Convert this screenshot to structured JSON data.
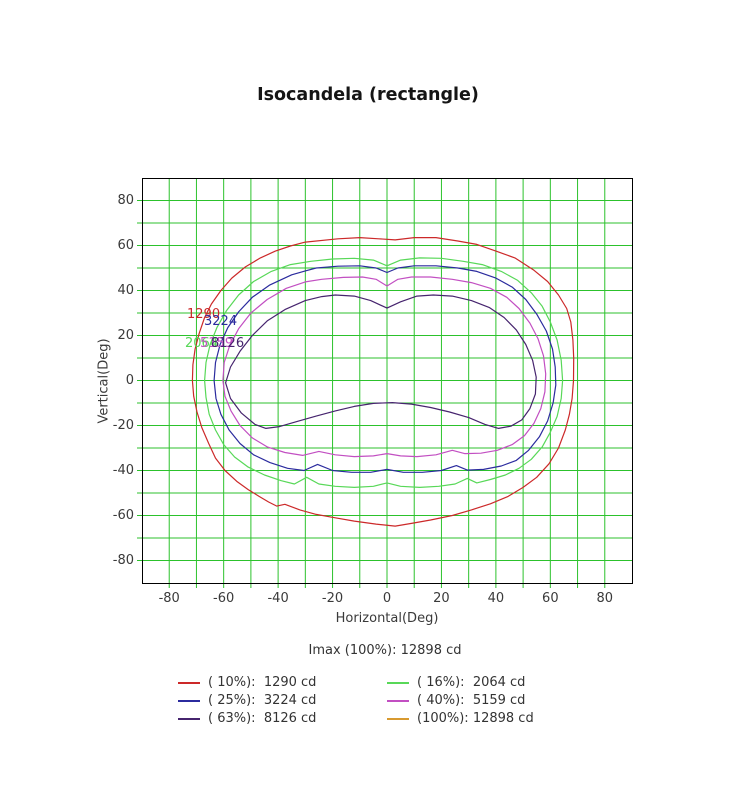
{
  "title": "Isocandela (rectangle)",
  "imax_text": "Imax (100%): 12898 cd",
  "chart_data": {
    "type": "line",
    "subtype": "isocandela-contour-plot",
    "title": "Isocandela (rectangle)",
    "xlabel": "Horizontal(Deg)",
    "ylabel": "Vertical(Deg)",
    "xlim": [
      -90,
      90
    ],
    "ylim": [
      -90,
      90
    ],
    "grid_step": 10,
    "grid_on": true,
    "grid_color": "#2cc22c",
    "axis_color": "#000000",
    "tick_color": "#2cc22c",
    "x_tick_values": [
      -80,
      -60,
      -40,
      -20,
      0,
      20,
      40,
      60,
      80
    ],
    "y_tick_values": [
      80,
      60,
      40,
      20,
      0,
      -20,
      -40,
      -60,
      -80
    ],
    "imax_candela": 12898,
    "legend_position": "bottom",
    "series": [
      {
        "name": "( 10%)",
        "percent": 10,
        "candela": 1290,
        "legend_text": "( 10%):  1290 cd",
        "color": "#cc2929",
        "points": [
          [
            -30,
            61.5
          ],
          [
            -18,
            63
          ],
          [
            -10,
            63.5
          ],
          [
            -3,
            63
          ],
          [
            3,
            62.5
          ],
          [
            10,
            63.5
          ],
          [
            18,
            63.5
          ],
          [
            26,
            62
          ],
          [
            33,
            60.5
          ],
          [
            40,
            57.5
          ],
          [
            47,
            54.5
          ],
          [
            54,
            49
          ],
          [
            59,
            44
          ],
          [
            63,
            38
          ],
          [
            66,
            32
          ],
          [
            67.5,
            26
          ],
          [
            68.3,
            18
          ],
          [
            68.6,
            10
          ],
          [
            68.5,
            0
          ],
          [
            68,
            -8
          ],
          [
            67,
            -15
          ],
          [
            65.5,
            -22
          ],
          [
            63,
            -30
          ],
          [
            59.5,
            -37
          ],
          [
            55,
            -43
          ],
          [
            50,
            -47.5
          ],
          [
            44.5,
            -51.5
          ],
          [
            38,
            -54.8
          ],
          [
            31,
            -57.5
          ],
          [
            24,
            -60
          ],
          [
            16,
            -62
          ],
          [
            9,
            -63.5
          ],
          [
            3,
            -64.7
          ],
          [
            -4,
            -63.8
          ],
          [
            -12,
            -62.5
          ],
          [
            -19,
            -61
          ],
          [
            -26,
            -59.5
          ],
          [
            -32,
            -57.5
          ],
          [
            -37.5,
            -55
          ],
          [
            -40.5,
            -55.8
          ],
          [
            -43.5,
            -54
          ],
          [
            -47,
            -51.5
          ],
          [
            -51,
            -48.5
          ],
          [
            -55,
            -45
          ],
          [
            -59.5,
            -40
          ],
          [
            -63,
            -34.5
          ],
          [
            -65.5,
            -28
          ],
          [
            -68,
            -21
          ],
          [
            -69.8,
            -14
          ],
          [
            -71,
            -7
          ],
          [
            -71.5,
            0
          ],
          [
            -71.3,
            7
          ],
          [
            -70.5,
            14
          ],
          [
            -69,
            21
          ],
          [
            -67,
            28
          ],
          [
            -64.5,
            34
          ],
          [
            -61,
            40
          ],
          [
            -57,
            45.5
          ],
          [
            -52,
            50.5
          ],
          [
            -46.5,
            54.5
          ],
          [
            -41,
            57.5
          ],
          [
            -35.5,
            59.8
          ]
        ]
      },
      {
        "name": "( 16%)",
        "percent": 16,
        "candela": 2064,
        "legend_text": "( 16%):  2064 cd",
        "color": "#58d858",
        "points": [
          [
            -28,
            53
          ],
          [
            -20,
            54
          ],
          [
            -12,
            54.3
          ],
          [
            -5,
            53.5
          ],
          [
            0,
            51
          ],
          [
            5,
            53.5
          ],
          [
            12,
            54.5
          ],
          [
            20,
            54.3
          ],
          [
            28,
            53
          ],
          [
            35,
            51.5
          ],
          [
            42,
            48.5
          ],
          [
            48,
            44.5
          ],
          [
            53,
            39
          ],
          [
            57,
            33
          ],
          [
            60,
            26
          ],
          [
            62.5,
            18
          ],
          [
            64,
            9
          ],
          [
            64.5,
            0
          ],
          [
            64,
            -8
          ],
          [
            62.5,
            -16
          ],
          [
            60,
            -23
          ],
          [
            57,
            -29.5
          ],
          [
            53,
            -35
          ],
          [
            48.5,
            -39
          ],
          [
            43.5,
            -42
          ],
          [
            38,
            -44
          ],
          [
            33,
            -45.5
          ],
          [
            29.5,
            -43.5
          ],
          [
            25,
            -46
          ],
          [
            19,
            -47
          ],
          [
            12,
            -47.5
          ],
          [
            5,
            -47
          ],
          [
            0,
            -45.5
          ],
          [
            -5,
            -47
          ],
          [
            -12,
            -47.5
          ],
          [
            -19,
            -47
          ],
          [
            -25,
            -46
          ],
          [
            -29.5,
            -43
          ],
          [
            -34,
            -46
          ],
          [
            -39,
            -44.5
          ],
          [
            -45,
            -42
          ],
          [
            -51,
            -38.5
          ],
          [
            -56,
            -34
          ],
          [
            -60,
            -28.5
          ],
          [
            -63,
            -22
          ],
          [
            -65.3,
            -15
          ],
          [
            -66.5,
            -7.5
          ],
          [
            -67,
            0
          ],
          [
            -66.5,
            8
          ],
          [
            -65,
            16
          ],
          [
            -62.5,
            23.5
          ],
          [
            -59,
            31
          ],
          [
            -54.5,
            38
          ],
          [
            -49,
            44
          ],
          [
            -42.5,
            48.5
          ],
          [
            -35.5,
            51.5
          ]
        ]
      },
      {
        "name": "( 25%)",
        "percent": 25,
        "candela": 3224,
        "legend_text": "( 25%):  3224 cd",
        "color": "#2b2b9e",
        "points": [
          [
            -26,
            50
          ],
          [
            -18,
            50.8
          ],
          [
            -10,
            51
          ],
          [
            -4,
            50
          ],
          [
            0,
            48
          ],
          [
            4,
            50
          ],
          [
            10,
            51
          ],
          [
            18,
            51
          ],
          [
            26,
            50
          ],
          [
            33,
            48.5
          ],
          [
            40,
            45.5
          ],
          [
            46,
            41.5
          ],
          [
            51,
            36
          ],
          [
            55,
            29.5
          ],
          [
            58.5,
            22
          ],
          [
            60.8,
            14
          ],
          [
            61.8,
            6
          ],
          [
            62,
            -2
          ],
          [
            61,
            -10
          ],
          [
            59,
            -18
          ],
          [
            56,
            -25
          ],
          [
            52,
            -31
          ],
          [
            47.5,
            -35.5
          ],
          [
            42,
            -38
          ],
          [
            35.5,
            -39.5
          ],
          [
            29.5,
            -39.8
          ],
          [
            25.5,
            -37.8
          ],
          [
            20,
            -40
          ],
          [
            13,
            -40.8
          ],
          [
            6,
            -40.8
          ],
          [
            0,
            -39.5
          ],
          [
            -6,
            -40.8
          ],
          [
            -13,
            -40.8
          ],
          [
            -20,
            -40
          ],
          [
            -25.5,
            -37.3
          ],
          [
            -30.5,
            -40
          ],
          [
            -36.5,
            -39
          ],
          [
            -43,
            -36.5
          ],
          [
            -49,
            -33
          ],
          [
            -54,
            -28
          ],
          [
            -58,
            -22
          ],
          [
            -61,
            -15
          ],
          [
            -62.8,
            -8
          ],
          [
            -63.5,
            0
          ],
          [
            -63,
            8
          ],
          [
            -61.3,
            16
          ],
          [
            -58.5,
            23.5
          ],
          [
            -54.5,
            30.5
          ],
          [
            -49.5,
            37
          ],
          [
            -43,
            42.5
          ],
          [
            -35,
            47
          ],
          [
            -30,
            48.7
          ]
        ]
      },
      {
        "name": "( 40%)",
        "percent": 40,
        "candela": 5159,
        "legend_text": "( 40%):  5159 cd",
        "color": "#c24fc2",
        "points": [
          [
            -24,
            45
          ],
          [
            -16,
            45.8
          ],
          [
            -9,
            46
          ],
          [
            -4,
            45
          ],
          [
            0,
            42
          ],
          [
            4,
            45
          ],
          [
            9,
            46
          ],
          [
            16,
            46
          ],
          [
            24,
            45
          ],
          [
            31,
            43.5
          ],
          [
            38,
            41
          ],
          [
            44,
            37
          ],
          [
            48.5,
            32
          ],
          [
            52.5,
            25.5
          ],
          [
            55.5,
            18.5
          ],
          [
            57.5,
            11
          ],
          [
            58.3,
            3
          ],
          [
            58,
            -5
          ],
          [
            56.5,
            -12.5
          ],
          [
            54,
            -19
          ],
          [
            50.5,
            -24.5
          ],
          [
            46,
            -28.5
          ],
          [
            40.5,
            -31
          ],
          [
            34.5,
            -32.3
          ],
          [
            28.5,
            -32.5
          ],
          [
            24,
            -31
          ],
          [
            18,
            -33
          ],
          [
            11,
            -33.8
          ],
          [
            5,
            -33.5
          ],
          [
            0,
            -32.5
          ],
          [
            -5,
            -33.5
          ],
          [
            -12,
            -33.8
          ],
          [
            -19,
            -33
          ],
          [
            -25,
            -31.5
          ],
          [
            -31,
            -33.3
          ],
          [
            -37.5,
            -32
          ],
          [
            -44,
            -29.5
          ],
          [
            -49.5,
            -25.5
          ],
          [
            -54,
            -20
          ],
          [
            -57.3,
            -13.5
          ],
          [
            -59.5,
            -7
          ],
          [
            -60.3,
            0
          ],
          [
            -59.8,
            8
          ],
          [
            -57.8,
            15.5
          ],
          [
            -54.5,
            23
          ],
          [
            -50,
            30
          ],
          [
            -44,
            36
          ],
          [
            -37,
            41
          ],
          [
            -30,
            43.8
          ]
        ]
      },
      {
        "name": "( 63%)",
        "percent": 63,
        "candela": 8126,
        "legend_text": "( 63%):  8126 cd",
        "color": "#46246e",
        "points": [
          [
            -19,
            38
          ],
          [
            -12,
            37.5
          ],
          [
            -6,
            35.5
          ],
          [
            0,
            32.2
          ],
          [
            5,
            35
          ],
          [
            11,
            37.5
          ],
          [
            17,
            38
          ],
          [
            24,
            37.5
          ],
          [
            31,
            35.5
          ],
          [
            37.5,
            32.5
          ],
          [
            43,
            28
          ],
          [
            47.5,
            22.5
          ],
          [
            51,
            16
          ],
          [
            53.5,
            9
          ],
          [
            54.8,
            1.5
          ],
          [
            54.5,
            -6
          ],
          [
            52.5,
            -12.5
          ],
          [
            49.5,
            -17.5
          ],
          [
            45.5,
            -20.3
          ],
          [
            41,
            -21.3
          ],
          [
            36,
            -19.5
          ],
          [
            30,
            -16.5
          ],
          [
            23,
            -14
          ],
          [
            16,
            -12
          ],
          [
            9,
            -10.5
          ],
          [
            2,
            -9.8
          ],
          [
            -5,
            -10.2
          ],
          [
            -12,
            -11.5
          ],
          [
            -19,
            -13.5
          ],
          [
            -26,
            -15.8
          ],
          [
            -33,
            -18.2
          ],
          [
            -39.5,
            -20.5
          ],
          [
            -44.5,
            -21.3
          ],
          [
            -48.5,
            -19.5
          ],
          [
            -53.5,
            -14.5
          ],
          [
            -57.5,
            -8
          ],
          [
            -59.3,
            -1
          ],
          [
            -57.5,
            6
          ],
          [
            -54,
            13
          ],
          [
            -49.5,
            20
          ],
          [
            -44,
            26.5
          ],
          [
            -37.5,
            31.5
          ],
          [
            -30,
            35.5
          ],
          [
            -24,
            37.3
          ]
        ]
      },
      {
        "name": "(100%)",
        "percent": 100,
        "candela": 12898,
        "legend_text": "(100%): 12898 cd",
        "color": "#d89a30",
        "points": []
      }
    ],
    "contour_labels": [
      {
        "text": "1290",
        "color": "#cc2929",
        "x": 187,
        "y": 307
      },
      {
        "text": "3224",
        "color": "#2b2b9e",
        "x": 204,
        "y": 314
      },
      {
        "text": "2064",
        "color": "#58d858",
        "x": 185,
        "y": 336
      },
      {
        "text": "5159",
        "color": "#c24fc2",
        "x": 200,
        "y": 336
      },
      {
        "text": "8126",
        "color": "#46246e",
        "x": 211,
        "y": 336
      }
    ]
  }
}
